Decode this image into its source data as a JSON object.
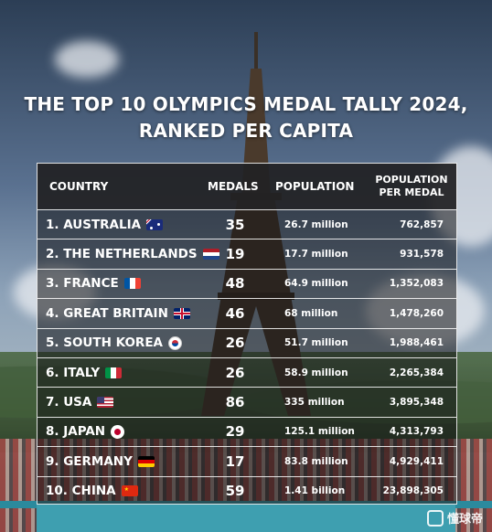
{
  "title": {
    "line1": "THE TOP 10 OLYMPICS MEDAL TALLY 2024,",
    "line2": "RANKED PER CAPITA"
  },
  "table": {
    "headers": {
      "country": "COUNTRY",
      "medals": "MEDALS",
      "population": "POPULATION",
      "population_per_medal_line1": "POPULATION",
      "population_per_medal_line2": "PER MEDAL"
    },
    "rows": [
      {
        "country": "1. AUSTRALIA",
        "flag": "australia",
        "medals": "35",
        "population": "26.7 million",
        "per_medal": "762,857"
      },
      {
        "country": "2. THE NETHERLANDS",
        "flag": "netherlands",
        "medals": "19",
        "population": "17.7 million",
        "per_medal": "931,578"
      },
      {
        "country": "3. FRANCE",
        "flag": "france",
        "medals": "48",
        "population": "64.9 million",
        "per_medal": "1,352,083"
      },
      {
        "country": "4. GREAT BRITAIN",
        "flag": "uk",
        "medals": "46",
        "population": "68 million",
        "per_medal": "1,478,260"
      },
      {
        "country": "5. SOUTH KOREA",
        "flag": "south-korea",
        "medals": "26",
        "population": "51.7 million",
        "per_medal": "1,988,461"
      },
      {
        "country": "6. ITALY",
        "flag": "italy",
        "medals": "26",
        "population": "58.9 million",
        "per_medal": "2,265,384"
      },
      {
        "country": "7. USA",
        "flag": "usa",
        "medals": "86",
        "population": "335 million",
        "per_medal": "3,895,348"
      },
      {
        "country": "8. JAPAN",
        "flag": "japan",
        "medals": "29",
        "population": "125.1 million",
        "per_medal": "4,313,793"
      },
      {
        "country": "9. GERMANY",
        "flag": "germany",
        "medals": "17",
        "population": "83.8 million",
        "per_medal": "4,929,411"
      },
      {
        "country": "10. CHINA",
        "flag": "china",
        "medals": "59",
        "population": "1.41 billion",
        "per_medal": "23,898,305"
      }
    ]
  },
  "watermark": {
    "text": "懂球帝",
    "icon": "watermark-logo-icon"
  },
  "colors": {
    "text": "#ffffff",
    "table_border": "#ffffff",
    "header_bg": "#232326"
  }
}
